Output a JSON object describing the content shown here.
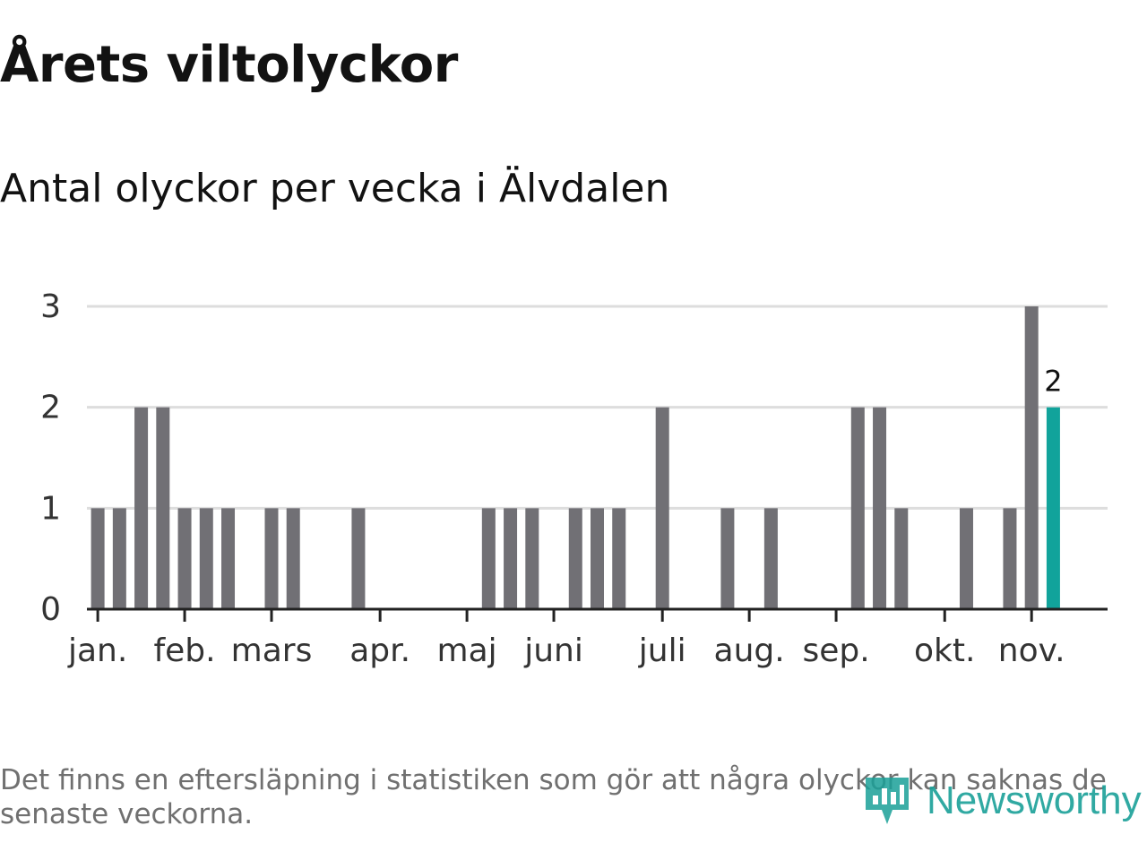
{
  "header": {
    "title": "Årets viltolyckor",
    "subtitle": "Antal olyckor per vecka i Älvdalen"
  },
  "footnote": "Det finns en eftersläpning i statistiken som gör att några olyckor kan saknas de senaste veckorna.",
  "brand": {
    "name": "Newsworthy",
    "icon": "newsworthy-logo-icon"
  },
  "colors": {
    "bar": "#717075",
    "highlight": "#11a39b",
    "grid": "#dddddd",
    "axis": "#222222",
    "text": "#121212",
    "footnote": "#707070",
    "brand": "#1aa098"
  },
  "chart_data": {
    "type": "bar",
    "title": "Antal olyckor per vecka i Älvdalen",
    "xlabel": "",
    "ylabel": "",
    "ylim": [
      0,
      3
    ],
    "yticks": [
      0,
      1,
      2,
      3
    ],
    "grid": true,
    "legend": "none",
    "week_range": [
      1,
      47
    ],
    "x_ticks": [
      {
        "week": 1,
        "label": "jan."
      },
      {
        "week": 5,
        "label": "feb."
      },
      {
        "week": 9,
        "label": "mars"
      },
      {
        "week": 14,
        "label": "apr."
      },
      {
        "week": 18,
        "label": "maj"
      },
      {
        "week": 22,
        "label": "juni"
      },
      {
        "week": 27,
        "label": "juli"
      },
      {
        "week": 31,
        "label": "aug."
      },
      {
        "week": 35,
        "label": "sep."
      },
      {
        "week": 40,
        "label": "okt."
      },
      {
        "week": 44,
        "label": "nov."
      }
    ],
    "series": [
      {
        "name": "Antal olyckor",
        "x": [
          1,
          2,
          3,
          4,
          5,
          6,
          7,
          8,
          9,
          10,
          11,
          12,
          13,
          14,
          15,
          16,
          17,
          18,
          19,
          20,
          21,
          22,
          23,
          24,
          25,
          26,
          27,
          28,
          29,
          30,
          31,
          32,
          33,
          34,
          35,
          36,
          37,
          38,
          39,
          40,
          41,
          42,
          43,
          44,
          45
        ],
        "values": [
          1,
          1,
          2,
          2,
          1,
          1,
          1,
          0,
          1,
          1,
          0,
          0,
          1,
          0,
          0,
          0,
          0,
          0,
          1,
          1,
          1,
          0,
          1,
          1,
          1,
          0,
          2,
          0,
          0,
          1,
          0,
          1,
          0,
          0,
          0,
          2,
          2,
          1,
          0,
          0,
          1,
          0,
          1,
          3,
          2
        ]
      }
    ],
    "highlight": {
      "week": 45,
      "value": 2,
      "label": "2"
    }
  }
}
